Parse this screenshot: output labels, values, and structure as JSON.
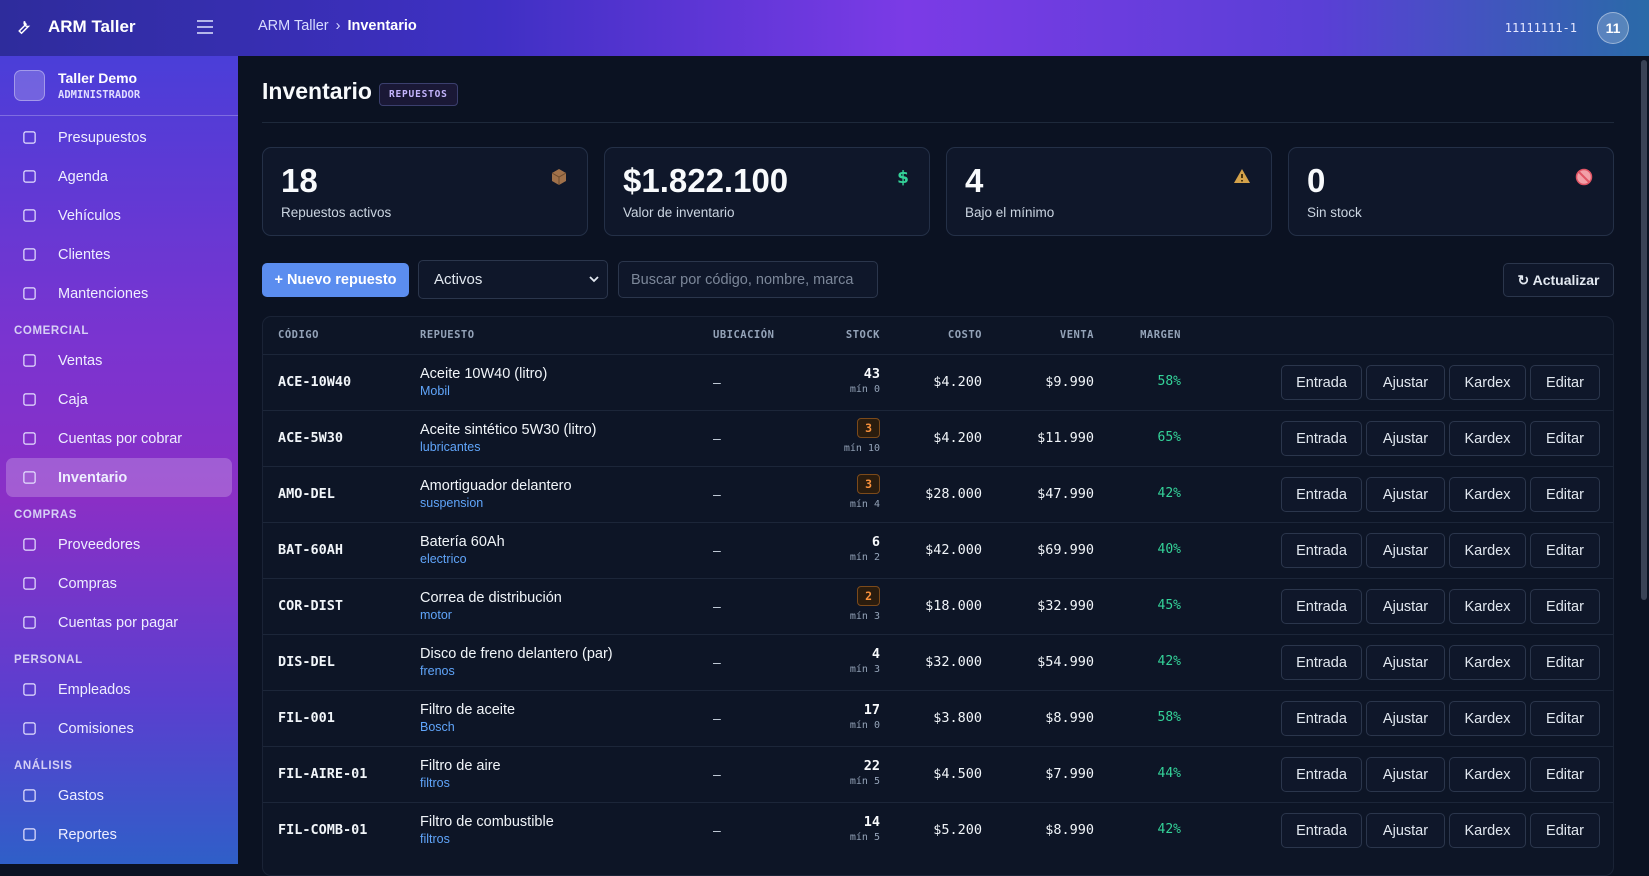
{
  "header": {
    "brand": "ARM Taller",
    "breadcrumb": [
      "ARM Taller",
      "Inventario"
    ],
    "user": "11111111-1",
    "avatar": "11"
  },
  "sidebar": {
    "company": {
      "name": "Taller Demo",
      "role": "ADMINISTRADOR"
    },
    "menu": [
      "Presupuestos",
      "Agenda",
      "Vehículos",
      "Clientes",
      "Mantenciones"
    ],
    "sections": [
      {
        "title": "COMERCIAL",
        "items": [
          "Ventas",
          "Caja",
          "Cuentas por cobrar",
          "Inventario"
        ],
        "active": 3
      },
      {
        "title": "COMPRAS",
        "items": [
          "Proveedores",
          "Compras",
          "Cuentas por pagar"
        ]
      },
      {
        "title": "PERSONAL",
        "items": [
          "Empleados",
          "Comisiones"
        ]
      },
      {
        "title": "ANÁLISIS",
        "items": [
          "Gastos",
          "Reportes"
        ]
      }
    ]
  },
  "page": {
    "title": "Inventario",
    "badge": "REPUESTOS"
  },
  "stats": [
    {
      "value": "18",
      "label": "Repuestos activos"
    },
    {
      "value": "$1.822.100",
      "label": "Valor de inventario"
    },
    {
      "value": "4",
      "label": "Bajo el mínimo"
    },
    {
      "value": "0",
      "label": "Sin stock"
    }
  ],
  "toolbar": {
    "new_button": "+ Nuevo repuesto",
    "filter": "Activos",
    "search_placeholder": "Buscar por código, nombre, marca",
    "refresh": "↻ Actualizar"
  },
  "table": {
    "columns": [
      "CÓDIGO",
      "REPUESTO",
      "UBICACIÓN",
      "STOCK",
      "COSTO",
      "VENTA",
      "MARGEN"
    ],
    "actions": [
      "Entrada",
      "Ajustar",
      "Kardex",
      "Editar"
    ],
    "rows": [
      {
        "code": "ACE-10W40",
        "name": "Aceite 10W40 (litro)",
        "brand": "Mobil",
        "location": "–",
        "stock": "43",
        "min": "mín 0",
        "cost": "$4.200",
        "price": "$9.990",
        "margin": "58%",
        "low": false
      },
      {
        "code": "ACE-5W30",
        "name": "Aceite sintético 5W30 (litro)",
        "brand": "lubricantes",
        "location": "–",
        "stock": "3",
        "min": "mín 10",
        "cost": "$4.200",
        "price": "$11.990",
        "margin": "65%",
        "low": true
      },
      {
        "code": "AMO-DEL",
        "name": "Amortiguador delantero",
        "brand": "suspension",
        "location": "–",
        "stock": "3",
        "min": "mín 4",
        "cost": "$28.000",
        "price": "$47.990",
        "margin": "42%",
        "low": true
      },
      {
        "code": "BAT-60AH",
        "name": "Batería 60Ah",
        "brand": "electrico",
        "location": "–",
        "stock": "6",
        "min": "mín 2",
        "cost": "$42.000",
        "price": "$69.990",
        "margin": "40%",
        "low": false
      },
      {
        "code": "COR-DIST",
        "name": "Correa de distribución",
        "brand": "motor",
        "location": "–",
        "stock": "2",
        "min": "mín 3",
        "cost": "$18.000",
        "price": "$32.990",
        "margin": "45%",
        "low": true
      },
      {
        "code": "DIS-DEL",
        "name": "Disco de freno delantero (par)",
        "brand": "frenos",
        "location": "–",
        "stock": "4",
        "min": "mín 3",
        "cost": "$32.000",
        "price": "$54.990",
        "margin": "42%",
        "low": false
      },
      {
        "code": "FIL-001",
        "name": "Filtro de aceite",
        "brand": "Bosch",
        "location": "–",
        "stock": "17",
        "min": "mín 0",
        "cost": "$3.800",
        "price": "$8.990",
        "margin": "58%",
        "low": false
      },
      {
        "code": "FIL-AIRE-01",
        "name": "Filtro de aire",
        "brand": "filtros",
        "location": "–",
        "stock": "22",
        "min": "mín 5",
        "cost": "$4.500",
        "price": "$7.990",
        "margin": "44%",
        "low": false
      },
      {
        "code": "FIL-COMB-01",
        "name": "Filtro de combustible",
        "brand": "filtros",
        "location": "–",
        "stock": "14",
        "min": "mín 5",
        "cost": "$5.200",
        "price": "$8.990",
        "margin": "42%",
        "low": false
      }
    ]
  }
}
